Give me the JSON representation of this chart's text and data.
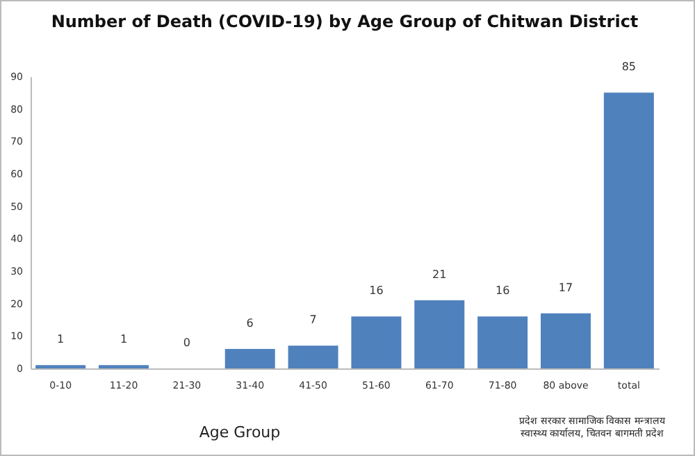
{
  "chart_data": {
    "type": "bar",
    "title": "Number of Death (COVID-19) by Age Group of Chitwan District",
    "xlabel": "Age Group",
    "categories": [
      "0-10",
      "11-20",
      "21-30",
      "31-40",
      "41-50",
      "51-60",
      "61-70",
      "71-80",
      "80 above",
      "total"
    ],
    "values": [
      1,
      1,
      0,
      6,
      7,
      16,
      21,
      16,
      17,
      85
    ],
    "color": "#4f81bd",
    "ylim": [
      0,
      90
    ],
    "yticks": [
      0,
      10,
      20,
      30,
      40,
      50,
      60,
      70,
      80,
      90
    ],
    "grid": false,
    "data_labels": true,
    "annotations": [
      "प्रदेश सरकार सामाजिक विकास मन्त्रालय स्वास्थ्य कार्यालय, चितवन बागमती प्रदेश"
    ]
  }
}
